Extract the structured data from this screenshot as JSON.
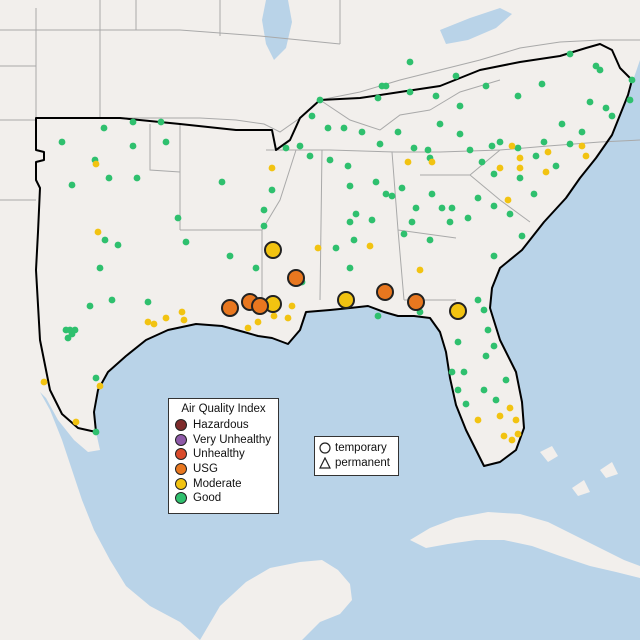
{
  "colors": {
    "land": "#f2efec",
    "water": "#b9d3e8",
    "state_border": "#a9a9a9",
    "region_outline": "#000000",
    "ring": "#222222"
  },
  "legend": {
    "title": "Air Quality Index",
    "items": [
      {
        "label": "Hazardous",
        "color": "#7e2b2b"
      },
      {
        "label": "Very Unhealthy",
        "color": "#8e5aa8"
      },
      {
        "label": "Unhealthy",
        "color": "#d94a2b"
      },
      {
        "label": "USG",
        "color": "#e8771f"
      },
      {
        "label": "Moderate",
        "color": "#f2c311"
      },
      {
        "label": "Good",
        "color": "#2fc06e"
      }
    ]
  },
  "monitor_legend": {
    "items": [
      {
        "label": "temporary",
        "shape": "circle-icon"
      },
      {
        "label": "permanent",
        "shape": "triangle-icon"
      }
    ]
  }
}
